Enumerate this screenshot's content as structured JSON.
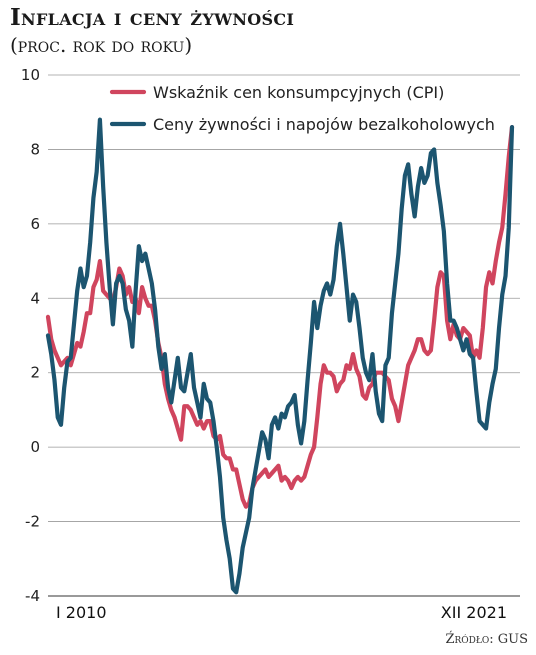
{
  "header": {
    "title": "Inflacja i ceny żywności",
    "subtitle": "(proc. rok do roku)"
  },
  "footer": {
    "source": "Źródło: GUS"
  },
  "chart_data": {
    "type": "line",
    "title": "Inflacja i ceny żywności",
    "subtitle": "(proc. rok do roku)",
    "ylim": [
      -4,
      10
    ],
    "yticks": [
      -4,
      -2,
      0,
      2,
      4,
      6,
      8,
      10
    ],
    "grid": true,
    "legend_position": "top-right",
    "x_start_label": "I 2010",
    "x_end_label": "XII 2021",
    "x": [
      "2010-01",
      "2010-02",
      "2010-03",
      "2010-04",
      "2010-05",
      "2010-06",
      "2010-07",
      "2010-08",
      "2010-09",
      "2010-10",
      "2010-11",
      "2010-12",
      "2011-01",
      "2011-02",
      "2011-03",
      "2011-04",
      "2011-05",
      "2011-06",
      "2011-07",
      "2011-08",
      "2011-09",
      "2011-10",
      "2011-11",
      "2011-12",
      "2012-01",
      "2012-02",
      "2012-03",
      "2012-04",
      "2012-05",
      "2012-06",
      "2012-07",
      "2012-08",
      "2012-09",
      "2012-10",
      "2012-11",
      "2012-12",
      "2013-01",
      "2013-02",
      "2013-03",
      "2013-04",
      "2013-05",
      "2013-06",
      "2013-07",
      "2013-08",
      "2013-09",
      "2013-10",
      "2013-11",
      "2013-12",
      "2014-01",
      "2014-02",
      "2014-03",
      "2014-04",
      "2014-05",
      "2014-06",
      "2014-07",
      "2014-08",
      "2014-09",
      "2014-10",
      "2014-11",
      "2014-12",
      "2015-01",
      "2015-02",
      "2015-03",
      "2015-04",
      "2015-05",
      "2015-06",
      "2015-07",
      "2015-08",
      "2015-09",
      "2015-10",
      "2015-11",
      "2015-12",
      "2016-01",
      "2016-02",
      "2016-03",
      "2016-04",
      "2016-05",
      "2016-06",
      "2016-07",
      "2016-08",
      "2016-09",
      "2016-10",
      "2016-11",
      "2016-12",
      "2017-01",
      "2017-02",
      "2017-03",
      "2017-04",
      "2017-05",
      "2017-06",
      "2017-07",
      "2017-08",
      "2017-09",
      "2017-10",
      "2017-11",
      "2017-12",
      "2018-01",
      "2018-02",
      "2018-03",
      "2018-04",
      "2018-05",
      "2018-06",
      "2018-07",
      "2018-08",
      "2018-09",
      "2018-10",
      "2018-11",
      "2018-12",
      "2019-01",
      "2019-02",
      "2019-03",
      "2019-04",
      "2019-05",
      "2019-06",
      "2019-07",
      "2019-08",
      "2019-09",
      "2019-10",
      "2019-11",
      "2019-12",
      "2020-01",
      "2020-02",
      "2020-03",
      "2020-04",
      "2020-05",
      "2020-06",
      "2020-07",
      "2020-08",
      "2020-09",
      "2020-10",
      "2020-11",
      "2020-12",
      "2021-01",
      "2021-02",
      "2021-03",
      "2021-04",
      "2021-05",
      "2021-06",
      "2021-07",
      "2021-08",
      "2021-09",
      "2021-10",
      "2021-11",
      "2021-12"
    ],
    "series": [
      {
        "name": "Wskaźnik cen konsumpcyjnych (CPI)",
        "color": "#d0455e",
        "values": [
          3.5,
          2.9,
          2.6,
          2.4,
          2.2,
          2.3,
          2.4,
          2.2,
          2.5,
          2.8,
          2.7,
          3.1,
          3.6,
          3.6,
          4.3,
          4.5,
          5.0,
          4.2,
          4.1,
          4.0,
          3.9,
          4.3,
          4.8,
          4.6,
          4.1,
          4.3,
          3.9,
          4.0,
          3.6,
          4.3,
          4.0,
          3.8,
          3.8,
          3.4,
          2.8,
          2.4,
          1.7,
          1.3,
          1.0,
          0.8,
          0.5,
          0.2,
          1.1,
          1.1,
          1.0,
          0.8,
          0.6,
          0.7,
          0.5,
          0.7,
          0.7,
          0.3,
          0.2,
          0.3,
          -0.2,
          -0.3,
          -0.3,
          -0.6,
          -0.6,
          -1.0,
          -1.4,
          -1.6,
          -1.5,
          -1.1,
          -0.9,
          -0.8,
          -0.7,
          -0.6,
          -0.8,
          -0.7,
          -0.6,
          -0.5,
          -0.9,
          -0.8,
          -0.9,
          -1.1,
          -0.9,
          -0.8,
          -0.9,
          -0.8,
          -0.5,
          -0.2,
          0.0,
          0.8,
          1.7,
          2.2,
          2.0,
          2.0,
          1.9,
          1.5,
          1.7,
          1.8,
          2.2,
          2.1,
          2.5,
          2.1,
          1.9,
          1.4,
          1.3,
          1.6,
          1.7,
          2.0,
          2.0,
          2.0,
          1.9,
          1.8,
          1.3,
          1.1,
          0.7,
          1.2,
          1.7,
          2.2,
          2.4,
          2.6,
          2.9,
          2.9,
          2.6,
          2.5,
          2.6,
          3.4,
          4.3,
          4.7,
          4.6,
          3.4,
          2.9,
          3.3,
          3.0,
          2.9,
          3.2,
          3.1,
          3.0,
          2.4,
          2.6,
          2.4,
          3.2,
          4.3,
          4.7,
          4.4,
          5.0,
          5.5,
          5.9,
          6.8,
          7.8,
          8.6
        ]
      },
      {
        "name": "Ceny żywności i napojów bezalkoholowych",
        "color": "#1c5570",
        "values": [
          3.0,
          2.5,
          1.8,
          0.8,
          0.6,
          1.6,
          2.3,
          2.4,
          3.3,
          4.2,
          4.8,
          4.3,
          4.6,
          5.5,
          6.7,
          7.4,
          8.8,
          7.0,
          5.5,
          4.3,
          3.3,
          4.4,
          4.6,
          4.4,
          3.7,
          3.4,
          2.7,
          4.2,
          5.4,
          5.0,
          5.2,
          4.8,
          4.4,
          3.7,
          2.7,
          2.1,
          2.5,
          1.6,
          1.2,
          1.8,
          2.4,
          1.6,
          1.5,
          2.0,
          2.5,
          1.6,
          1.2,
          0.8,
          1.7,
          1.3,
          1.2,
          0.7,
          0.0,
          -0.8,
          -1.9,
          -2.5,
          -3.0,
          -3.8,
          -3.9,
          -3.4,
          -2.7,
          -2.3,
          -1.9,
          -1.1,
          -0.6,
          -0.1,
          0.4,
          0.2,
          -0.3,
          0.6,
          0.8,
          0.5,
          0.9,
          0.8,
          1.1,
          1.2,
          1.4,
          0.6,
          0.1,
          0.7,
          1.8,
          2.8,
          3.9,
          3.2,
          3.8,
          4.2,
          4.4,
          4.1,
          4.5,
          5.4,
          6.0,
          5.2,
          4.3,
          3.4,
          4.1,
          3.9,
          3.2,
          2.4,
          2.0,
          1.8,
          2.5,
          1.5,
          0.9,
          0.7,
          2.2,
          2.4,
          3.6,
          4.4,
          5.2,
          6.4,
          7.3,
          7.6,
          6.8,
          6.2,
          7.0,
          7.5,
          7.1,
          7.3,
          7.9,
          8.0,
          7.1,
          6.5,
          5.8,
          4.4,
          3.4,
          3.4,
          3.2,
          2.9,
          2.6,
          2.9,
          2.5,
          2.4,
          1.5,
          0.7,
          0.6,
          0.5,
          1.2,
          1.7,
          2.1,
          3.2,
          4.1,
          4.6,
          5.9,
          8.6
        ]
      }
    ]
  }
}
